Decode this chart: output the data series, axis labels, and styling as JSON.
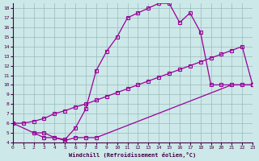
{
  "xlabel": "Windchill (Refroidissement éolien,°C)",
  "xlim": [
    0,
    23
  ],
  "ylim": [
    4,
    18.5
  ],
  "xticks": [
    0,
    1,
    2,
    3,
    4,
    5,
    6,
    7,
    8,
    9,
    10,
    11,
    12,
    13,
    14,
    15,
    16,
    17,
    18,
    19,
    20,
    21,
    22,
    23
  ],
  "yticks": [
    4,
    5,
    6,
    7,
    8,
    9,
    10,
    11,
    12,
    13,
    14,
    15,
    16,
    17,
    18
  ],
  "bg_color": "#cde8e8",
  "line_color": "#990099",
  "grid_color": "#99bbbb",
  "line1_x": [
    0,
    1,
    2,
    3,
    4,
    5,
    6,
    7,
    8,
    9,
    10,
    11,
    12,
    13,
    14,
    15,
    16,
    17,
    18,
    19,
    20,
    21,
    22,
    23
  ],
  "line1_y": [
    6.0,
    6.0,
    6.2,
    6.5,
    7.0,
    7.3,
    7.7,
    8.0,
    8.4,
    8.8,
    9.2,
    9.6,
    10.0,
    10.4,
    10.8,
    11.2,
    11.6,
    12.0,
    12.4,
    12.8,
    13.2,
    13.6,
    14.0,
    10.0
  ],
  "line2_x": [
    0,
    2,
    3,
    4,
    5,
    6,
    7,
    8,
    9,
    10,
    11,
    12,
    13,
    14,
    15,
    16,
    17,
    18,
    19,
    20,
    21,
    22,
    23
  ],
  "line2_y": [
    6.0,
    5.0,
    4.5,
    4.5,
    4.3,
    5.5,
    7.5,
    11.5,
    13.5,
    15.0,
    17.0,
    17.5,
    18.0,
    18.5,
    18.5,
    16.5,
    17.5,
    15.5,
    10.0,
    10.0,
    10.0,
    10.0,
    10.0
  ],
  "line3_x": [
    2,
    3,
    4,
    5,
    6,
    7,
    8,
    21,
    22,
    23
  ],
  "line3_y": [
    5.0,
    5.0,
    4.5,
    4.2,
    4.5,
    4.5,
    4.5,
    10.0,
    10.0,
    10.0
  ]
}
